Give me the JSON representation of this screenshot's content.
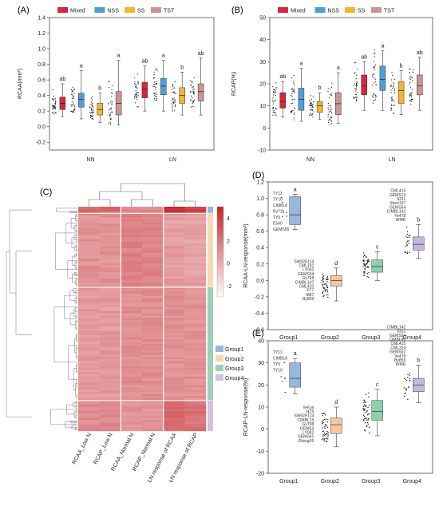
{
  "chart_data": [
    {
      "panel": "(A)",
      "type": "box",
      "ylabel": "RCAA(mm²)",
      "categories": [
        "NN",
        "LN"
      ],
      "ylim": [
        -0.3,
        1.4
      ],
      "yticks": [
        "-0.2",
        "0.0",
        "0.2",
        "0.4",
        "0.6",
        "0.8",
        "1.0",
        "1.2",
        "1.4"
      ],
      "legend": {
        "position": "top",
        "entries": [
          "Mixed",
          "NSS",
          "SS",
          "TST"
        ]
      },
      "series": [
        {
          "name": "Mixed",
          "color": "#d7263d",
          "boxes": [
            [
              0.13,
              0.22,
              0.3,
              0.38,
              0.55
            ],
            [
              0.2,
              0.37,
              0.48,
              0.57,
              0.78
            ]
          ],
          "letters": [
            "ab",
            "ab"
          ]
        },
        {
          "name": "NSS",
          "color": "#4f9fd6",
          "boxes": [
            [
              0.1,
              0.25,
              0.35,
              0.43,
              0.72
            ],
            [
              0.2,
              0.41,
              0.52,
              0.62,
              0.85
            ]
          ],
          "letters": [
            "a",
            "a"
          ]
        },
        {
          "name": "SS",
          "color": "#f2b632",
          "boxes": [
            [
              0.05,
              0.15,
              0.22,
              0.3,
              0.43
            ],
            [
              0.15,
              0.3,
              0.4,
              0.5,
              0.7
            ]
          ],
          "letters": [
            "b",
            "b"
          ]
        },
        {
          "name": "TST",
          "color": "#c99594",
          "boxes": [
            [
              0.02,
              0.15,
              0.3,
              0.45,
              0.85
            ],
            [
              0.15,
              0.33,
              0.45,
              0.55,
              0.88
            ]
          ],
          "letters": [
            "a",
            "ab"
          ]
        }
      ]
    },
    {
      "panel": "(B)",
      "type": "box",
      "ylabel": "RCAP(%)",
      "categories": [
        "NN",
        "LN"
      ],
      "ylim": [
        -10,
        50
      ],
      "yticks": [
        "-10",
        "0",
        "10",
        "20",
        "30",
        "40",
        "50"
      ],
      "legend": {
        "position": "top",
        "entries": [
          "Mixed",
          "NSS",
          "SS",
          "TST"
        ]
      },
      "series": [
        {
          "name": "Mixed",
          "color": "#d7263d",
          "boxes": [
            [
              5,
              9,
              12,
              16,
              21
            ],
            [
              8,
              15,
              19,
              24,
              30
            ]
          ],
          "letters": [
            "ab",
            "ab"
          ]
        },
        {
          "name": "NSS",
          "color": "#4f9fd6",
          "boxes": [
            [
              3,
              8,
              13,
              18,
              27
            ],
            [
              8,
              17,
              22,
              28,
              35
            ]
          ],
          "letters": [
            "a",
            "a"
          ]
        },
        {
          "name": "SS",
          "color": "#f2b632",
          "boxes": [
            [
              4,
              7,
              10,
              12,
              16
            ],
            [
              6,
              11,
              17,
              21,
              26
            ]
          ],
          "letters": [
            "b",
            "b"
          ]
        },
        {
          "name": "TST",
          "color": "#c99594",
          "boxes": [
            [
              2,
              6,
              11,
              16,
              25
            ],
            [
              8,
              15,
              19,
              24,
              32
            ]
          ],
          "letters": [
            "a",
            "ab"
          ]
        }
      ]
    },
    {
      "panel": "(C)",
      "type": "heatmap",
      "columns": [
        "RCAA_Low N",
        "RCAP_Low N",
        "RCAA_Normal N",
        "RCAP_Normal N",
        "LN response of RCAA",
        "LN response of RCAP"
      ],
      "colorbar_ticks": [
        "4",
        "2",
        "0",
        "-2"
      ],
      "clim": [
        -3,
        5
      ],
      "groups": [
        {
          "name": "Group1",
          "color": "#98b7dc",
          "rows": 3,
          "values": [
            2.6,
            2.7,
            1.5,
            1.5,
            4.8,
            4.2
          ]
        },
        {
          "name": "Group2",
          "color": "#f6d8b6",
          "rows": 34,
          "values": [
            1.1,
            1.1,
            1.7,
            1.6,
            0.7,
            0.5
          ]
        },
        {
          "name": "Group3",
          "color": "#9fcfb6",
          "rows": 52,
          "values": [
            0.8,
            0.8,
            1.2,
            1.2,
            1.1,
            1.0
          ]
        },
        {
          "name": "Group4",
          "color": "#cfc3e1",
          "rows": 14,
          "values": [
            1.3,
            1.3,
            1.0,
            1.0,
            2.6,
            2.3
          ]
        }
      ]
    },
    {
      "panel": "(D)",
      "type": "box",
      "ylabel": "RCAA-LN-response(mm²)",
      "categories": [
        "Group1",
        "Group2",
        "Group3",
        "Group4"
      ],
      "ylim": [
        -0.6,
        1.2
      ],
      "yticks": [
        "-0.6",
        "-0.4",
        "-0.2",
        "0.0",
        "0.2",
        "0.4",
        "0.6",
        "0.8",
        "1.0",
        "1.2"
      ],
      "colors": [
        "#98b7dc",
        "#f6c89b",
        "#8fcfac",
        "#c4b6dd"
      ],
      "boxes": [
        [
          0.62,
          0.68,
          0.8,
          1.02,
          1.05
        ],
        [
          -0.25,
          -0.07,
          0.0,
          0.06,
          0.15
        ],
        [
          0.0,
          0.1,
          0.17,
          0.25,
          0.35
        ],
        [
          0.27,
          0.37,
          0.44,
          0.53,
          0.68
        ]
      ],
      "letters": [
        "a",
        "d",
        "c",
        "b"
      ],
      "annotations": {
        "Group1": [
          "TY11",
          "TY10",
          "CIMBL8",
          "Ry711",
          "TY5",
          "E540",
          "GEMS55"
        ],
        "Group2": [
          "SW92E114",
          "CML192",
          "LY042",
          "GEMS64",
          "Gy798",
          "CIMBL147",
          "CML420",
          "P77",
          "M97",
          "By809"
        ],
        "Group4": [
          "CML415",
          "GEMS13",
          "S311",
          "Shen137",
          "GEMS54",
          "CIMBL142",
          "Ye478",
          "WMR"
        ]
      }
    },
    {
      "panel": "(E)",
      "type": "box",
      "ylabel": "RCAP-LN-response(%)",
      "categories": [
        "Group1",
        "Group2",
        "Group3",
        "Group4"
      ],
      "ylim": [
        -20,
        40
      ],
      "yticks": [
        "-20",
        "-10",
        "0",
        "10",
        "20",
        "30",
        "40"
      ],
      "colors": [
        "#98b7dc",
        "#f6c89b",
        "#8fcfac",
        "#c4b6dd"
      ],
      "boxes": [
        [
          16,
          19,
          23,
          30,
          32
        ],
        [
          -8,
          -2,
          2,
          5,
          10
        ],
        [
          -3,
          4,
          8,
          13,
          18
        ],
        [
          12,
          17,
          20,
          23,
          29
        ]
      ],
      "letters": [
        "a",
        "d",
        "c",
        "b"
      ],
      "annotations": {
        "Group1": [
          "TY11",
          "CIMBL8",
          "TY5",
          "TY10"
        ],
        "Group2": [
          "Ye516",
          "HZ5",
          "SW92E114",
          "CIMBL15",
          "Gy798",
          "GEMS3",
          "LY042",
          "GEMS41",
          "Zheng35"
        ],
        "Group4": [
          "CIMBL142",
          "S311",
          "GEMS54",
          "CIMBL45",
          "CML415",
          "CML324",
          "GEMS32",
          "Ye478",
          "By855",
          "WMR"
        ]
      }
    }
  ]
}
